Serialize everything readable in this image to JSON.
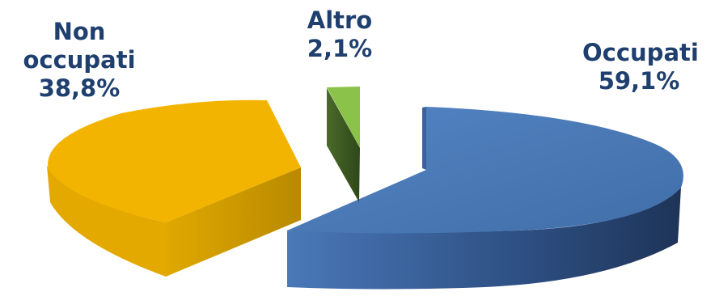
{
  "chart_data": {
    "type": "pie",
    "title": "",
    "slices": [
      {
        "label_lines": [
          "Occupati"
        ],
        "percent_label": "59,1%",
        "value": 59.1,
        "color": "#4a78b8",
        "side_color": "#2a4470"
      },
      {
        "label_lines": [
          "Non",
          "occupati"
        ],
        "percent_label": "38,8%",
        "value": 38.8,
        "color": "#f3b400",
        "side_color": "#b98a00"
      },
      {
        "label_lines": [
          "Altro"
        ],
        "percent_label": "2,1%",
        "value": 2.1,
        "color": "#8bc34a",
        "side_color": "#3d5a22"
      }
    ],
    "style": "3d-exploded",
    "legend": "none",
    "grid": false
  }
}
